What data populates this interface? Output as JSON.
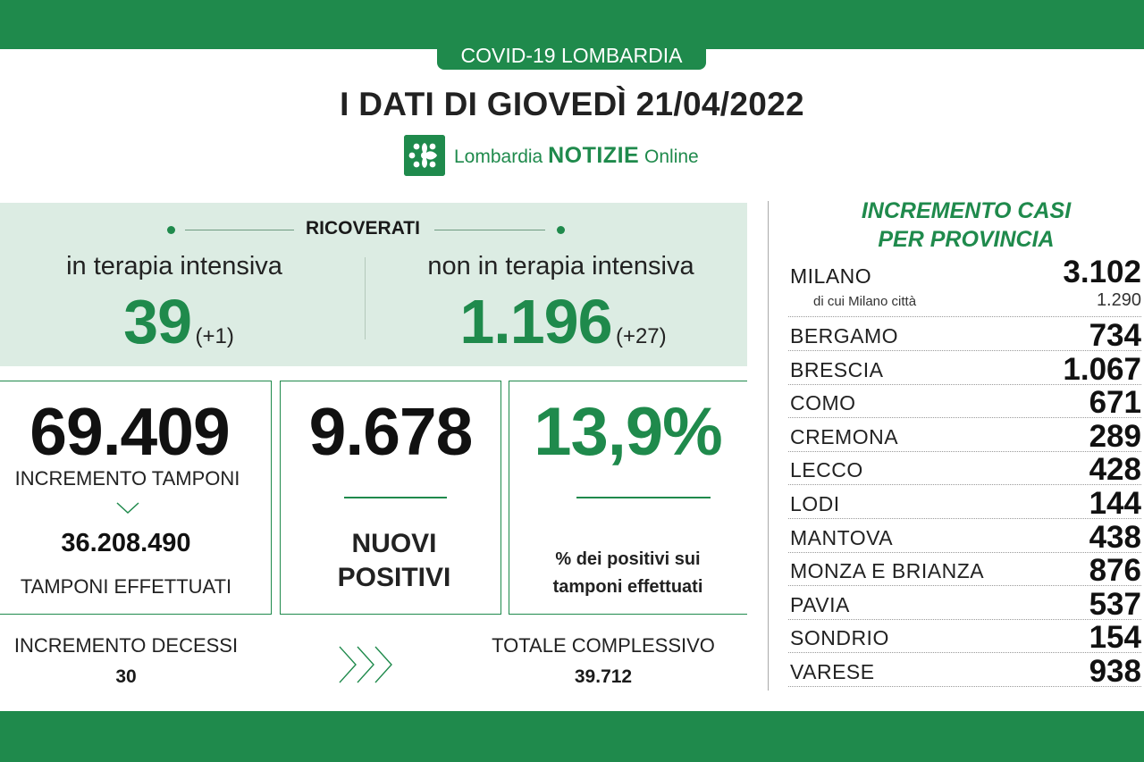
{
  "header": {
    "badge": "COVID-19 LOMBARDIA",
    "headline": "I DATI DI GIOVEDÌ 21/04/2022",
    "logo": {
      "brand": "Lombardia",
      "notizie": "NOTIZIE",
      "online": "Online"
    }
  },
  "ricoverati": {
    "title": "RICOVERATI",
    "intensiva": {
      "label": "in terapia intensiva",
      "value": "39",
      "delta": "(+1)"
    },
    "non_intensiva": {
      "label": "non in terapia intensiva",
      "value": "1.196",
      "delta": "(+27)"
    }
  },
  "tamponi": {
    "value": "69.409",
    "label": "INCREMENTO TAMPONI",
    "total": "36.208.490",
    "total_label": "TAMPONI EFFETTUATI"
  },
  "positivi": {
    "value": "9.678",
    "label_line1": "NUOVI",
    "label_line2": "POSITIVI"
  },
  "percentuale": {
    "value": "13,9%",
    "label_line1": "% dei positivi sui",
    "label_line2": "tamponi effettuati"
  },
  "decessi": {
    "label": "INCREMENTO DECESSI",
    "value": "30",
    "total_label": "TOTALE COMPLESSIVO",
    "total": "39.712"
  },
  "province": {
    "title_line1": "INCREMENTO CASI",
    "title_line2": "PER PROVINCIA",
    "milano": {
      "name": "MILANO",
      "value": "3.102",
      "sub_label": "di cui Milano città",
      "sub_value": "1.290"
    },
    "rows": [
      {
        "name": "BERGAMO",
        "value": "734"
      },
      {
        "name": "BRESCIA",
        "value": "1.067"
      },
      {
        "name": "COMO",
        "value": "671"
      },
      {
        "name": "CREMONA",
        "value": "289"
      },
      {
        "name": "LECCO",
        "value": "428"
      },
      {
        "name": "LODI",
        "value": "144"
      },
      {
        "name": "MANTOVA",
        "value": "438"
      },
      {
        "name": "MONZA E BRIANZA",
        "value": "876"
      },
      {
        "name": "PAVIA",
        "value": "537"
      },
      {
        "name": "SONDRIO",
        "value": "154"
      },
      {
        "name": "VARESE",
        "value": "938"
      }
    ]
  },
  "colors": {
    "brand_green": "#1f8a4c",
    "panel_green": "#dcece3"
  }
}
